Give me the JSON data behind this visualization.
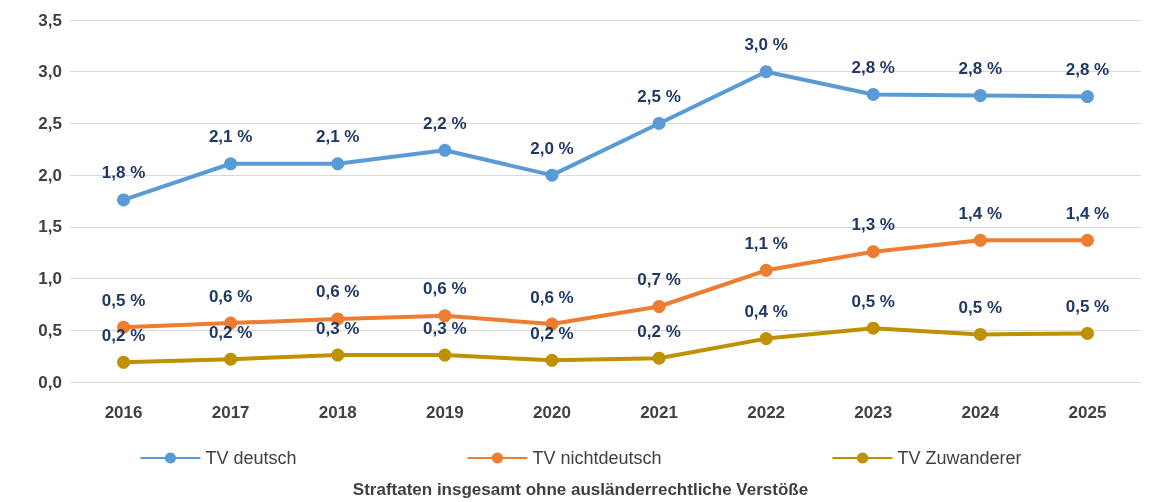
{
  "chart_data": {
    "type": "line",
    "categories": [
      "2016",
      "2017",
      "2018",
      "2019",
      "2020",
      "2021",
      "2022",
      "2023",
      "2024",
      "2025"
    ],
    "series": [
      {
        "name": "TV deutsch",
        "color": "#5b9bd5",
        "values": [
          1.76,
          2.11,
          2.11,
          2.24,
          2.0,
          2.5,
          3.0,
          2.78,
          2.77,
          2.76
        ],
        "value_labels": [
          "1,8 %",
          "2,1 %",
          "2,1 %",
          "2,2 %",
          "2,0 %",
          "2,5 %",
          "3,0 %",
          "2,8 %",
          "2,8 %",
          "2,8 %"
        ]
      },
      {
        "name": "TV nichtdeutsch",
        "color": "#ed7d31",
        "values": [
          0.53,
          0.57,
          0.61,
          0.64,
          0.56,
          0.73,
          1.08,
          1.26,
          1.37,
          1.37
        ],
        "value_labels": [
          "0,5 %",
          "0,6 %",
          "0,6 %",
          "0,6 %",
          "0,6 %",
          "0,7 %",
          "1,1 %",
          "1,3 %",
          "1,4 %",
          "1,4 %"
        ]
      },
      {
        "name": "TV Zuwanderer",
        "color": "#bf9000",
        "values": [
          0.19,
          0.22,
          0.26,
          0.26,
          0.21,
          0.23,
          0.42,
          0.52,
          0.46,
          0.47
        ],
        "value_labels": [
          "0,2 %",
          "0,2 %",
          "0,3 %",
          "0,3 %",
          "0,2 %",
          "0,2 %",
          "0,4 %",
          "0,5 %",
          "0,5 %",
          "0,5 %"
        ]
      }
    ],
    "ylim": [
      0,
      3.5
    ],
    "yticks": [
      {
        "value": 0,
        "label": "0,0"
      },
      {
        "value": 0.5,
        "label": "0,5"
      },
      {
        "value": 1,
        "label": "1,0"
      },
      {
        "value": 1.5,
        "label": "1,5"
      },
      {
        "value": 2,
        "label": "2,0"
      },
      {
        "value": 2.5,
        "label": "2,5"
      },
      {
        "value": 3,
        "label": "3,0"
      },
      {
        "value": 3.5,
        "label": "3,5"
      }
    ],
    "grid": "y",
    "legend": "bottom",
    "marker": "circle",
    "line_style": "solid",
    "annotations": [
      "Straftaten insgesamt ohne ausländerrechtliche Verstöße"
    ]
  }
}
